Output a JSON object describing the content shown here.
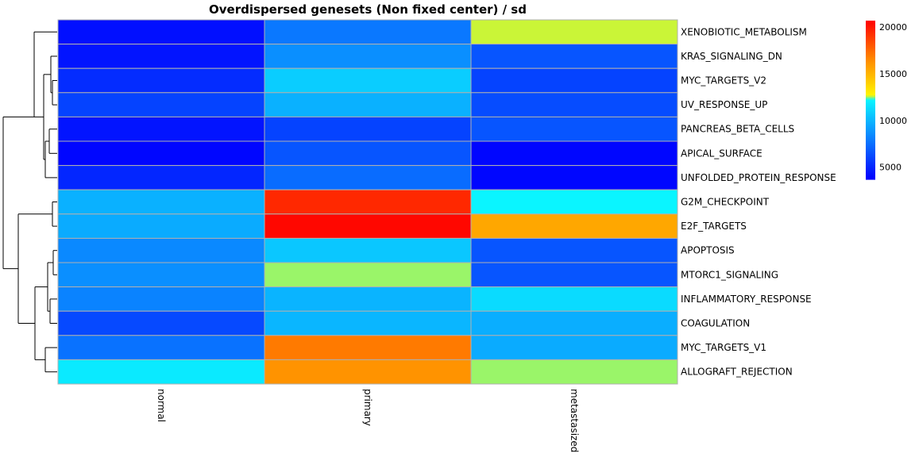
{
  "chart_data": {
    "type": "heatmap",
    "title": "Overdispersed genesets (Non fixed center) / sd",
    "columns": [
      "normal",
      "primary",
      "metastasized"
    ],
    "rows": [
      "XENOBIOTIC_METABOLISM",
      "KRAS_SIGNALING_DN",
      "MYC_TARGETS_V2",
      "UV_RESPONSE_UP",
      "PANCREAS_BETA_CELLS",
      "APICAL_SURFACE",
      "UNFOLDED_PROTEIN_RESPONSE",
      "G2M_CHECKPOINT",
      "E2F_TARGETS",
      "APOPTOSIS",
      "MTORC1_SIGNALING",
      "INFLAMMATORY_RESPONSE",
      "COAGULATION",
      "MYC_TARGETS_V1",
      "ALLOGRAFT_REJECTION"
    ],
    "values": [
      [
        4200,
        7800,
        12600
      ],
      [
        4400,
        8600,
        6600
      ],
      [
        5200,
        10800,
        6000
      ],
      [
        6000,
        9800,
        6300
      ],
      [
        4400,
        6000,
        6600
      ],
      [
        3900,
        6600,
        3900
      ],
      [
        5000,
        7400,
        3900
      ],
      [
        9800,
        19500,
        12200
      ],
      [
        9600,
        20500,
        15500
      ],
      [
        8400,
        10600,
        6600
      ],
      [
        8600,
        12500,
        6600
      ],
      [
        8200,
        9900,
        11300
      ],
      [
        6200,
        10000,
        9700
      ],
      [
        7600,
        17000,
        9600
      ],
      [
        11800,
        16200,
        12500
      ]
    ],
    "colorbar": {
      "range": [
        3700,
        20700
      ],
      "ticks": [
        5000,
        10000,
        15000,
        20000
      ],
      "colors": [
        "#0000ff",
        "#0a7cff",
        "#0af5ff",
        "#fff500",
        "#ff8c00",
        "#ff0000"
      ],
      "stops": [
        0.0,
        0.25,
        0.5,
        0.53,
        0.75,
        1.0
      ]
    },
    "grid_color": "#b0b0b0",
    "dendrogram": "rows"
  }
}
